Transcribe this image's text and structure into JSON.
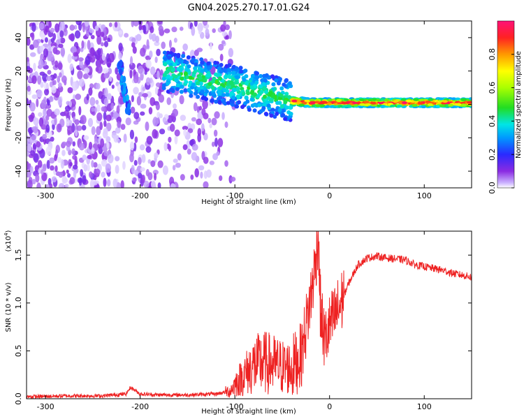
{
  "title": "GN04.2025.270.17.01.G24",
  "chart_data": [
    {
      "type": "heatmap",
      "name": "spectrogram",
      "xlabel": "Height of straight line (km)",
      "ylabel": "Frequency (Hz)",
      "xlim": [
        -320,
        150
      ],
      "ylim": [
        -50,
        50
      ],
      "xticks": [
        -300,
        -200,
        -100,
        0,
        100
      ],
      "yticks": [
        -40,
        -20,
        0,
        20,
        40
      ],
      "colorbar": {
        "label": "Normalized spectral amplitude",
        "range": [
          0,
          1
        ],
        "ticks": [
          0.0,
          0.2,
          0.4,
          0.6,
          0.8
        ],
        "tick_labels": [
          "0.0",
          "0.2",
          "0.4",
          "0.6",
          "0.8"
        ]
      },
      "dominant_frequency_track": [
        {
          "x": -175,
          "y": 20
        },
        {
          "x": -150,
          "y": 17
        },
        {
          "x": -125,
          "y": 14
        },
        {
          "x": -100,
          "y": 11
        },
        {
          "x": -80,
          "y": 8
        },
        {
          "x": -60,
          "y": 5
        },
        {
          "x": -40,
          "y": 2
        },
        {
          "x": -20,
          "y": 1
        },
        {
          "x": 0,
          "y": 1
        },
        {
          "x": 50,
          "y": 1
        },
        {
          "x": 100,
          "y": 1
        },
        {
          "x": 150,
          "y": 1
        }
      ]
    },
    {
      "type": "line",
      "name": "snr",
      "xlabel": "Height of straight line (km)",
      "ylabel": "SNR (10 * v/v)",
      "scale_label": "(x10",
      "scale_exponent": "4",
      "xlim": [
        -320,
        150
      ],
      "ylim": [
        0,
        1.75
      ],
      "xticks": [
        -300,
        -200,
        -100,
        0,
        100
      ],
      "yticks": [
        0.0,
        0.5,
        1.0,
        1.5
      ],
      "ytick_labels": [
        "0.0",
        "0.5",
        "1.0",
        "1.5"
      ],
      "series": [
        {
          "name": "SNR",
          "color": "#ee2222",
          "x": [
            -320,
            -280,
            -240,
            -215,
            -210,
            -200,
            -180,
            -150,
            -120,
            -105,
            -100,
            -90,
            -80,
            -70,
            -60,
            -50,
            -40,
            -30,
            -25,
            -20,
            -15,
            -12,
            -10,
            -8,
            -5,
            0,
            5,
            10,
            20,
            30,
            40,
            50,
            60,
            70,
            80,
            90,
            100,
            110,
            120,
            130,
            140,
            150
          ],
          "y": [
            0.02,
            0.03,
            0.03,
            0.05,
            0.12,
            0.05,
            0.04,
            0.04,
            0.05,
            0.08,
            0.15,
            0.25,
            0.35,
            0.38,
            0.36,
            0.33,
            0.32,
            0.45,
            0.75,
            1.05,
            1.4,
            1.75,
            1.0,
            0.8,
            0.6,
            0.75,
            0.85,
            0.95,
            1.2,
            1.4,
            1.47,
            1.49,
            1.47,
            1.46,
            1.45,
            1.4,
            1.38,
            1.36,
            1.34,
            1.31,
            1.29,
            1.27
          ]
        }
      ]
    }
  ],
  "colors": {
    "snr_line": "#ee2222",
    "axis": "#000000",
    "background": "#ffffff"
  }
}
